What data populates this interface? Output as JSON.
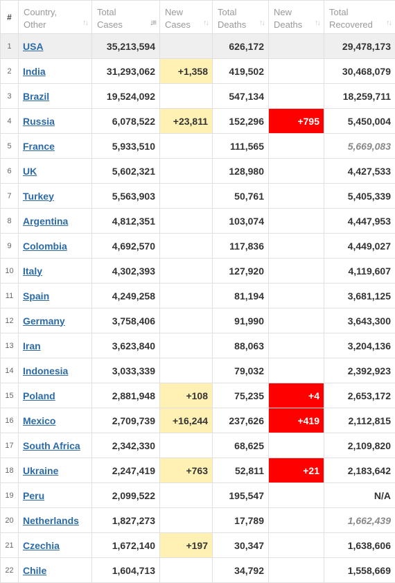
{
  "headers": {
    "num": "#",
    "country": [
      "Country,",
      "Other"
    ],
    "total_cases": [
      "Total",
      "Cases"
    ],
    "new_cases": [
      "New",
      "Cases"
    ],
    "total_deaths": [
      "Total",
      "Deaths"
    ],
    "new_deaths": [
      "New",
      "Deaths"
    ],
    "total_recovered": [
      "Total",
      "Recovered"
    ]
  },
  "colors": {
    "new_cases_highlight": "#fff0b3",
    "new_deaths_highlight": "#ff0000",
    "country_link": "#2c6aa5"
  },
  "rows": [
    {
      "rank": "1",
      "country": "USA",
      "total_cases": "35,213,594",
      "new_cases": "",
      "total_deaths": "626,172",
      "new_deaths": "",
      "total_recovered": "29,478,173"
    },
    {
      "rank": "2",
      "country": "India",
      "total_cases": "31,293,062",
      "new_cases": "+1,358",
      "total_deaths": "419,502",
      "new_deaths": "",
      "total_recovered": "30,468,079"
    },
    {
      "rank": "3",
      "country": "Brazil",
      "total_cases": "19,524,092",
      "new_cases": "",
      "total_deaths": "547,134",
      "new_deaths": "",
      "total_recovered": "18,259,711"
    },
    {
      "rank": "4",
      "country": "Russia",
      "total_cases": "6,078,522",
      "new_cases": "+23,811",
      "total_deaths": "152,296",
      "new_deaths": "+795",
      "total_recovered": "5,450,004"
    },
    {
      "rank": "5",
      "country": "France",
      "total_cases": "5,933,510",
      "new_cases": "",
      "total_deaths": "111,565",
      "new_deaths": "",
      "total_recovered": "5,669,083",
      "recovered_estimated": true
    },
    {
      "rank": "6",
      "country": "UK",
      "total_cases": "5,602,321",
      "new_cases": "",
      "total_deaths": "128,980",
      "new_deaths": "",
      "total_recovered": "4,427,533"
    },
    {
      "rank": "7",
      "country": "Turkey",
      "total_cases": "5,563,903",
      "new_cases": "",
      "total_deaths": "50,761",
      "new_deaths": "",
      "total_recovered": "5,405,339"
    },
    {
      "rank": "8",
      "country": "Argentina",
      "total_cases": "4,812,351",
      "new_cases": "",
      "total_deaths": "103,074",
      "new_deaths": "",
      "total_recovered": "4,447,953"
    },
    {
      "rank": "9",
      "country": "Colombia",
      "total_cases": "4,692,570",
      "new_cases": "",
      "total_deaths": "117,836",
      "new_deaths": "",
      "total_recovered": "4,449,027"
    },
    {
      "rank": "10",
      "country": "Italy",
      "total_cases": "4,302,393",
      "new_cases": "",
      "total_deaths": "127,920",
      "new_deaths": "",
      "total_recovered": "4,119,607"
    },
    {
      "rank": "11",
      "country": "Spain",
      "total_cases": "4,249,258",
      "new_cases": "",
      "total_deaths": "81,194",
      "new_deaths": "",
      "total_recovered": "3,681,125"
    },
    {
      "rank": "12",
      "country": "Germany",
      "total_cases": "3,758,406",
      "new_cases": "",
      "total_deaths": "91,990",
      "new_deaths": "",
      "total_recovered": "3,643,300"
    },
    {
      "rank": "13",
      "country": "Iran",
      "total_cases": "3,623,840",
      "new_cases": "",
      "total_deaths": "88,063",
      "new_deaths": "",
      "total_recovered": "3,204,136"
    },
    {
      "rank": "14",
      "country": "Indonesia",
      "total_cases": "3,033,339",
      "new_cases": "",
      "total_deaths": "79,032",
      "new_deaths": "",
      "total_recovered": "2,392,923"
    },
    {
      "rank": "15",
      "country": "Poland",
      "total_cases": "2,881,948",
      "new_cases": "+108",
      "total_deaths": "75,235",
      "new_deaths": "+4",
      "total_recovered": "2,653,172"
    },
    {
      "rank": "16",
      "country": "Mexico",
      "total_cases": "2,709,739",
      "new_cases": "+16,244",
      "total_deaths": "237,626",
      "new_deaths": "+419",
      "total_recovered": "2,112,815"
    },
    {
      "rank": "17",
      "country": "South Africa",
      "total_cases": "2,342,330",
      "new_cases": "",
      "total_deaths": "68,625",
      "new_deaths": "",
      "total_recovered": "2,109,820"
    },
    {
      "rank": "18",
      "country": "Ukraine",
      "total_cases": "2,247,419",
      "new_cases": "+763",
      "total_deaths": "52,811",
      "new_deaths": "+21",
      "total_recovered": "2,183,642"
    },
    {
      "rank": "19",
      "country": "Peru",
      "total_cases": "2,099,522",
      "new_cases": "",
      "total_deaths": "195,547",
      "new_deaths": "",
      "total_recovered": "N/A"
    },
    {
      "rank": "20",
      "country": "Netherlands",
      "total_cases": "1,827,273",
      "new_cases": "",
      "total_deaths": "17,789",
      "new_deaths": "",
      "total_recovered": "1,662,439",
      "recovered_estimated": true
    },
    {
      "rank": "21",
      "country": "Czechia",
      "total_cases": "1,672,140",
      "new_cases": "+197",
      "total_deaths": "30,347",
      "new_deaths": "",
      "total_recovered": "1,638,606"
    },
    {
      "rank": "22",
      "country": "Chile",
      "total_cases": "1,604,713",
      "new_cases": "",
      "total_deaths": "34,792",
      "new_deaths": "",
      "total_recovered": "1,558,669"
    }
  ]
}
